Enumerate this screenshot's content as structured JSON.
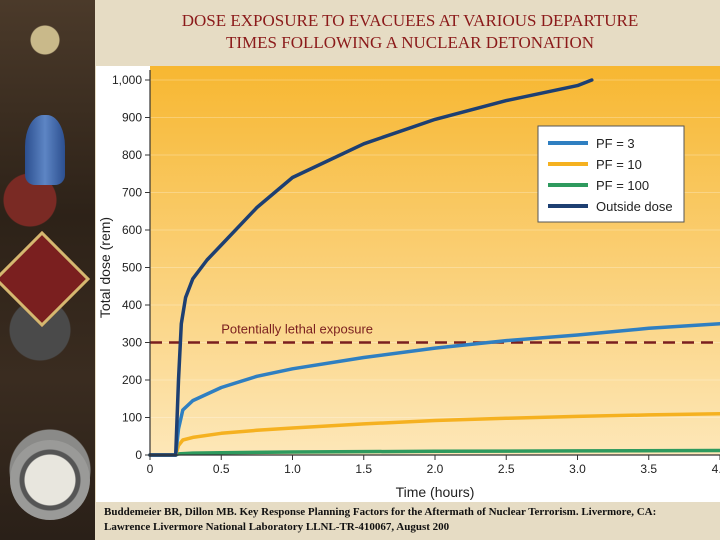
{
  "title": {
    "line1": "DOSE EXPOSURE TO EVACUEES AT VARIOUS DEPARTURE",
    "line2": "TIMES FOLLOWING A NUCLEAR DETONATION"
  },
  "citation": {
    "line1": "Buddemeier BR, Dillon MB. Key Response Planning Factors for the Aftermath of Nuclear Terrorism. Livermore, CA:",
    "line2": "Lawrence Livermore National Laboratory LLNL-TR-410067, August 200"
  },
  "colors": {
    "plot_bg_top": "#f7b731",
    "plot_bg_bottom": "#fde7b8",
    "pf3": "#2f7fc1",
    "pf10": "#f5b120",
    "pf100": "#2e9a5e",
    "outside": "#1d3f72",
    "lethal": "#7a1f1f"
  },
  "chart_data": {
    "type": "line",
    "xlabel": "Time (hours)",
    "ylabel": "Total dose (rem)",
    "xlim": [
      0,
      4.0
    ],
    "ylim": [
      0,
      1000
    ],
    "x_ticks": [
      "0",
      "0.5",
      "1.0",
      "1.5",
      "2.0",
      "2.5",
      "3.0",
      "3.5",
      "4.0"
    ],
    "y_ticks": [
      "0",
      "100",
      "200",
      "300",
      "400",
      "500",
      "600",
      "700",
      "800",
      "900",
      "1,000"
    ],
    "legend_position": "top-right",
    "threshold": {
      "value": 300,
      "label": "Potentially lethal exposure"
    },
    "series": [
      {
        "name": "PF = 3",
        "x": [
          0.18,
          0.2,
          0.23,
          0.3,
          0.5,
          0.75,
          1.0,
          1.5,
          2.0,
          2.5,
          3.0,
          3.5,
          4.0
        ],
        "y": [
          0,
          70,
          120,
          145,
          180,
          210,
          230,
          260,
          285,
          305,
          320,
          338,
          350
        ]
      },
      {
        "name": "PF = 10",
        "x": [
          0.18,
          0.2,
          0.23,
          0.3,
          0.5,
          0.75,
          1.0,
          1.5,
          2.0,
          2.5,
          3.0,
          3.5,
          4.0
        ],
        "y": [
          0,
          25,
          40,
          47,
          58,
          66,
          72,
          83,
          92,
          98,
          103,
          107,
          110
        ]
      },
      {
        "name": "PF = 100",
        "x": [
          0.18,
          0.2,
          0.3,
          0.5,
          1.0,
          2.0,
          3.0,
          4.0
        ],
        "y": [
          0,
          3,
          5,
          6,
          8,
          10,
          11,
          12
        ]
      },
      {
        "name": "Outside dose",
        "x": [
          0.18,
          0.2,
          0.22,
          0.25,
          0.3,
          0.4,
          0.5,
          0.75,
          1.0,
          1.5,
          2.0,
          2.5,
          3.0,
          3.1
        ],
        "y": [
          0,
          200,
          350,
          420,
          470,
          520,
          560,
          660,
          740,
          830,
          895,
          945,
          985,
          1000
        ]
      }
    ]
  }
}
